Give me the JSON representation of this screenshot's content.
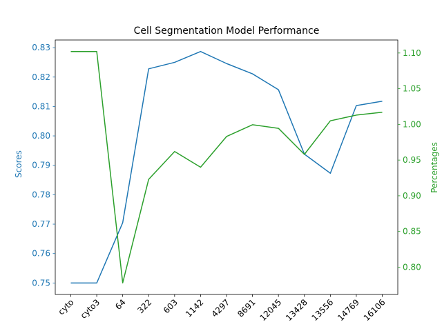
{
  "chart_data": {
    "type": "line",
    "title": "Cell Segmentation Model Performance",
    "categories": [
      "cyto",
      "cyto3",
      "64",
      "322",
      "603",
      "1142",
      "4297",
      "8691",
      "12045",
      "13428",
      "13556",
      "14769",
      "16106"
    ],
    "series": [
      {
        "name": "Scores",
        "axis": "left",
        "color": "#1f77b4",
        "values": [
          0.75,
          0.75,
          0.7705,
          0.8228,
          0.825,
          0.8287,
          0.8246,
          0.8211,
          0.8157,
          0.7938,
          0.7873,
          0.8103,
          0.8118
        ]
      },
      {
        "name": "Percentages",
        "axis": "right",
        "color": "#2ca02c",
        "values": [
          1.102,
          1.102,
          0.778,
          0.923,
          0.962,
          0.94,
          0.983,
          0.9995,
          0.9945,
          0.958,
          1.005,
          1.013,
          1.017
        ]
      }
    ],
    "y_left": {
      "label": "Scores",
      "color": "#1f77b4",
      "ticks": [
        "0.75",
        "0.76",
        "0.77",
        "0.78",
        "0.79",
        "0.80",
        "0.81",
        "0.82",
        "0.83"
      ],
      "lim": [
        0.7461,
        0.8326
      ]
    },
    "y_right": {
      "label": "Percentages",
      "color": "#2ca02c",
      "ticks": [
        "0.80",
        "0.85",
        "0.90",
        "0.95",
        "1.00",
        "1.05",
        "1.10"
      ],
      "lim": [
        0.7618,
        1.1182
      ]
    },
    "grid": false,
    "legend": "none"
  }
}
